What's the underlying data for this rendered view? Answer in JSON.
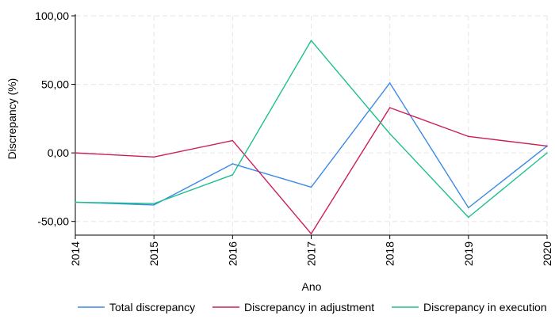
{
  "chart_data": {
    "type": "line",
    "title": "",
    "xlabel": "Ano",
    "ylabel": "Discrepancy (%)",
    "categories": [
      "2014",
      "2015",
      "2016",
      "2017",
      "2018",
      "2019",
      "2020"
    ],
    "ylim": [
      -60,
      100
    ],
    "y_ticks": [
      100,
      50,
      0,
      -50
    ],
    "y_tick_labels": [
      "100,00",
      "50,00",
      "0,00",
      "-50,00"
    ],
    "grid": true,
    "legend_position": "bottom",
    "series": [
      {
        "name": "Total discrepancy",
        "color": "#3c8ae8",
        "values": [
          -36,
          -38,
          -8,
          -25,
          51,
          -40,
          5
        ]
      },
      {
        "name": "Discrepancy in adjustment",
        "color": "#cc1f5a",
        "values": [
          0,
          -3,
          9,
          -59,
          33,
          12,
          5
        ]
      },
      {
        "name": "Discrepancy in execution",
        "color": "#1dbf8e",
        "values": [
          -36,
          -37,
          -16,
          82,
          14,
          -47,
          0
        ]
      }
    ]
  }
}
